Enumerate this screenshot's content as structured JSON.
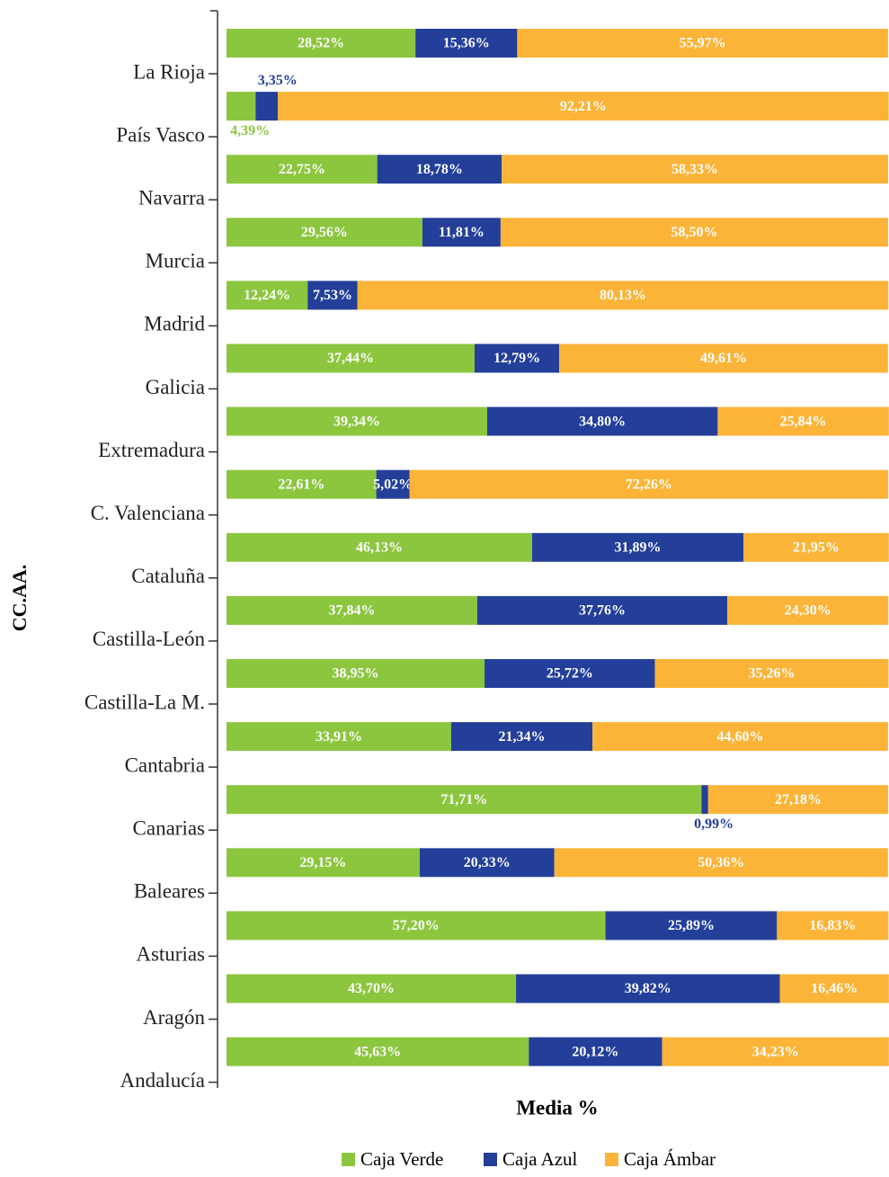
{
  "chart_data": {
    "type": "stacked-bar-horizontal",
    "y_label": "CC.AA.",
    "x_label": "Media %",
    "categories": [
      "La Rioja",
      "País Vasco",
      "Navarra",
      "Murcia",
      "Madrid",
      "Galicia",
      "Extremadura",
      "C. Valenciana",
      "Cataluña",
      "Castilla-León",
      "Castilla-La M.",
      "Cantabria",
      "Canarias",
      "Baleares",
      "Asturias",
      "Aragón",
      "Andalucía"
    ],
    "xlim": [
      0,
      100
    ],
    "series": [
      {
        "name": "Caja Verde",
        "color": "#8cc63f",
        "values": [
          28.52,
          4.39,
          22.75,
          29.56,
          12.24,
          37.44,
          39.34,
          22.61,
          46.13,
          37.84,
          38.95,
          33.91,
          71.71,
          29.15,
          57.2,
          43.7,
          45.63
        ],
        "value_labels": [
          "28,52%",
          "4,39%",
          "22,75%",
          "29,56%",
          "12,24%",
          "37,44%",
          "39,34%",
          "22,61%",
          "46,13%",
          "37,84%",
          "38,95%",
          "33,91%",
          "71,71%",
          "29,15%",
          "57,20%",
          "43,70%",
          "45,63%"
        ]
      },
      {
        "name": "Caja Azul",
        "color": "#233f99",
        "values": [
          15.36,
          3.35,
          18.78,
          11.81,
          7.53,
          12.79,
          34.8,
          5.02,
          31.89,
          37.76,
          25.72,
          21.34,
          0.99,
          20.33,
          25.89,
          39.82,
          20.12
        ],
        "value_labels": [
          "15,36%",
          "3,35%",
          "18,78%",
          "11,81%",
          "7,53%",
          "12,79%",
          "34,80%",
          "5,02%",
          "31,89%",
          "37,76%",
          "25,72%",
          "21,34%",
          "0,99%",
          "20,33%",
          "25,89%",
          "39,82%",
          "20,12%"
        ]
      },
      {
        "name": "Caja Ámbar",
        "color": "#fbb437",
        "values": [
          55.97,
          92.21,
          58.33,
          58.5,
          80.13,
          49.61,
          25.84,
          72.26,
          21.95,
          24.3,
          35.26,
          44.6,
          27.18,
          50.36,
          16.83,
          16.46,
          34.23
        ],
        "value_labels": [
          "55,97%",
          "92,21%",
          "58,33%",
          "58,50%",
          "80,13%",
          "49,61%",
          "25,84%",
          "72,26%",
          "21,95%",
          "24,30%",
          "35,26%",
          "44,60%",
          "27,18%",
          "50,36%",
          "16,83%",
          "16,46%",
          "34,23%"
        ]
      }
    ]
  }
}
